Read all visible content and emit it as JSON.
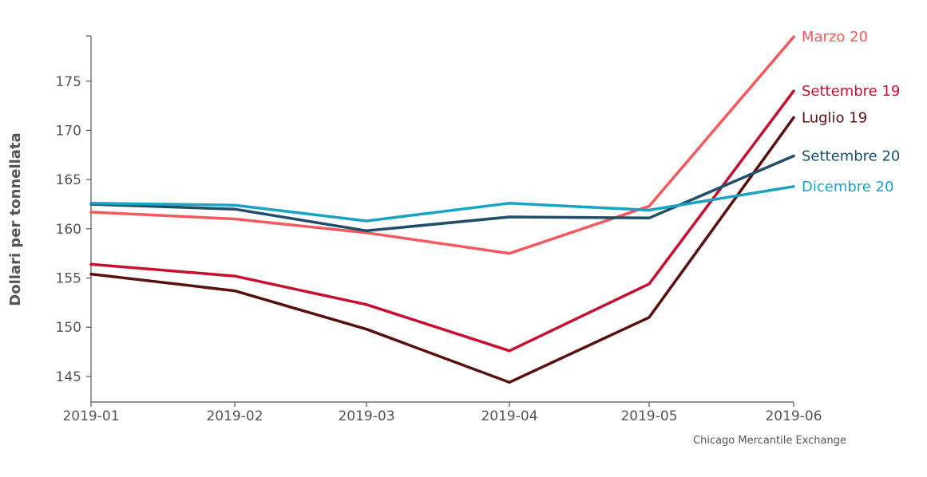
{
  "chart_data": {
    "type": "line",
    "ylabel": "Dollari per tonnellata",
    "source": "Chicago Mercantile Exchange",
    "x": [
      "2019-01",
      "2019-02",
      "2019-03",
      "2019-04",
      "2019-05",
      "2019-06"
    ],
    "yticks": [
      145,
      150,
      155,
      160,
      165,
      170,
      175
    ],
    "ylim": [
      142.4,
      179.6
    ],
    "grid": false,
    "series": [
      {
        "name": "Marzo 20",
        "color": "#f4595e",
        "values": [
          161.7,
          161.0,
          159.6,
          157.5,
          162.3,
          179.5
        ]
      },
      {
        "name": "Settembre 19",
        "color": "#c8102e",
        "values": [
          156.4,
          155.2,
          152.3,
          147.6,
          154.4,
          174.0
        ]
      },
      {
        "name": "Luglio 19",
        "color": "#5a0f0f",
        "values": [
          155.4,
          153.7,
          149.8,
          144.4,
          151.0,
          171.3
        ]
      },
      {
        "name": "Settembre 20",
        "color": "#1f4e6b",
        "values": [
          162.5,
          162.0,
          159.8,
          161.2,
          161.1,
          167.4
        ]
      },
      {
        "name": "Dicembre 20",
        "color": "#18a3c4",
        "values": [
          162.6,
          162.4,
          160.8,
          162.6,
          161.9,
          164.3
        ]
      }
    ]
  }
}
